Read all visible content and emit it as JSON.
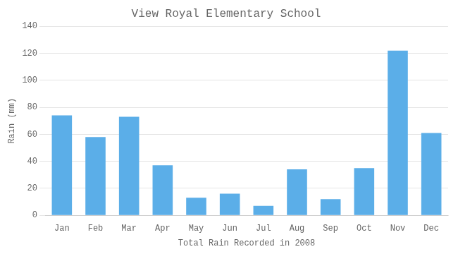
{
  "chart_data": {
    "type": "bar",
    "title": "View Royal Elementary School",
    "xlabel": "Total Rain Recorded in 2008",
    "ylabel": "Rain (mm)",
    "categories": [
      "Jan",
      "Feb",
      "Mar",
      "Apr",
      "May",
      "Jun",
      "Jul",
      "Aug",
      "Sep",
      "Oct",
      "Nov",
      "Dec"
    ],
    "values": [
      74,
      58,
      73,
      37,
      13,
      16,
      7,
      34,
      12,
      35,
      122,
      61
    ],
    "color": "#5BAEE8",
    "ylim": [
      0,
      140
    ],
    "yticks": [
      0,
      20,
      40,
      60,
      80,
      100,
      120,
      140
    ],
    "grid": true
  }
}
